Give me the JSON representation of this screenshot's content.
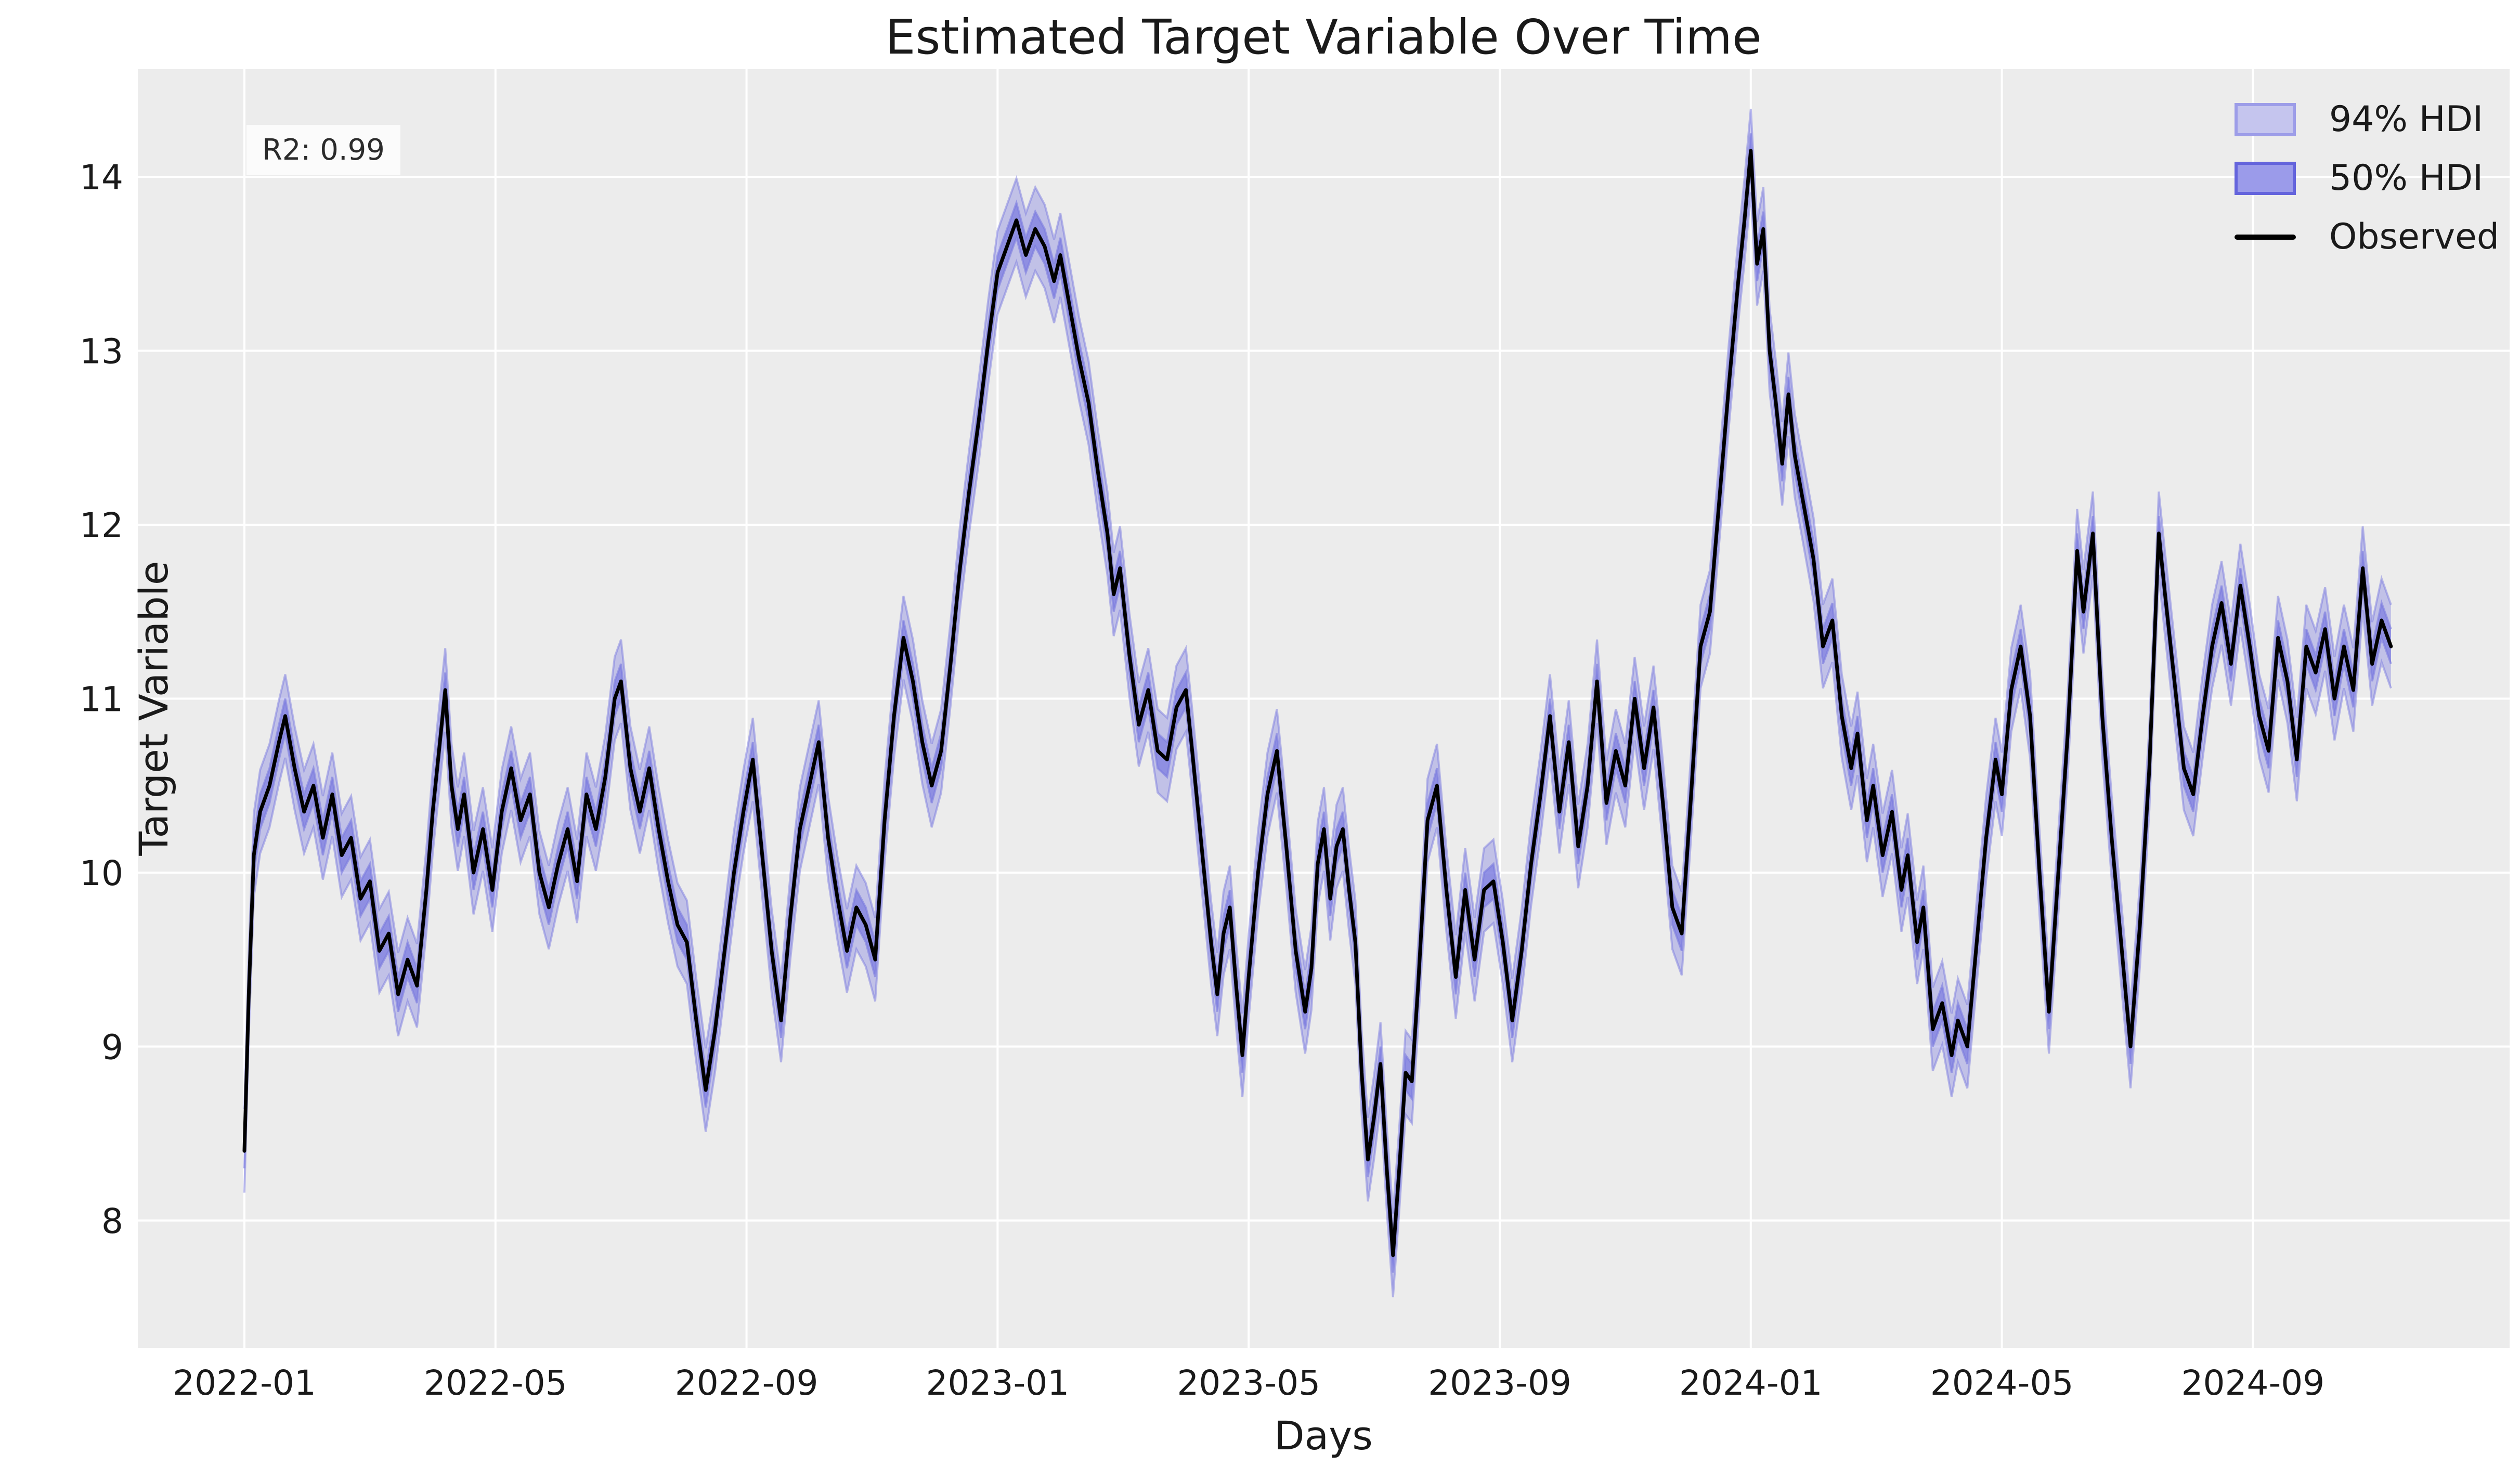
{
  "chart_data": {
    "type": "line",
    "title": "Estimated Target Variable Over Time",
    "xlabel": "Days",
    "ylabel": "Target Variable",
    "annotation": "R2: 0.99",
    "plot_bg_color": "#ececec",
    "grid_color": "#ffffff",
    "grid": "on",
    "legend_position": "upper right",
    "text_color": "#1a1a1a",
    "x_axis_unit": "date (monthly ticks, data is daily from 2022-01 to 2024-11)",
    "x_ticks": [
      {
        "label": "2022-01",
        "month": 0
      },
      {
        "label": "2022-05",
        "month": 4
      },
      {
        "label": "2022-09",
        "month": 8
      },
      {
        "label": "2023-01",
        "month": 12
      },
      {
        "label": "2023-05",
        "month": 16
      },
      {
        "label": "2023-09",
        "month": 20
      },
      {
        "label": "2024-01",
        "month": 24
      },
      {
        "label": "2024-05",
        "month": 28
      },
      {
        "label": "2024-09",
        "month": 32
      }
    ],
    "y_ticks": [
      8,
      9,
      10,
      11,
      12,
      13,
      14
    ],
    "ylim": [
      7.27,
      14.62
    ],
    "xlim_months": [
      -1.7,
      36.1
    ],
    "legend": {
      "items": [
        {
          "label": "94% HDI",
          "type": "patch",
          "fill": "#c5c5ee",
          "border": "#9d9de8"
        },
        {
          "label": "50% HDI",
          "type": "patch",
          "fill": "#9b9bea",
          "border": "#6464dc"
        },
        {
          "label": "Observed",
          "type": "line",
          "color": "#000000"
        }
      ]
    },
    "bands": [
      {
        "name": "94% HDI",
        "halfwidth": 0.24,
        "color": "#7c7ce0",
        "opacity": 0.38,
        "edge_opacity": 0.5
      },
      {
        "name": "50% HDI",
        "halfwidth": 0.1,
        "color": "#7c7ce0",
        "opacity": 0.72,
        "edge_opacity": 0.6
      }
    ],
    "series": [
      {
        "name": "Observed",
        "color": "#000000",
        "linewidth": 7,
        "points_format": "[months_since_2022_01, value]",
        "points": [
          [
            0.0,
            8.4
          ],
          [
            0.07,
            9.3
          ],
          [
            0.15,
            10.1
          ],
          [
            0.25,
            10.35
          ],
          [
            0.4,
            10.5
          ],
          [
            0.55,
            10.75
          ],
          [
            0.65,
            10.9
          ],
          [
            0.8,
            10.6
          ],
          [
            0.95,
            10.35
          ],
          [
            1.1,
            10.5
          ],
          [
            1.25,
            10.2
          ],
          [
            1.4,
            10.45
          ],
          [
            1.55,
            10.1
          ],
          [
            1.7,
            10.2
          ],
          [
            1.85,
            9.85
          ],
          [
            2.0,
            9.95
          ],
          [
            2.15,
            9.55
          ],
          [
            2.3,
            9.65
          ],
          [
            2.45,
            9.3
          ],
          [
            2.6,
            9.5
          ],
          [
            2.75,
            9.35
          ],
          [
            2.9,
            9.9
          ],
          [
            3.0,
            10.35
          ],
          [
            3.1,
            10.7
          ],
          [
            3.2,
            11.05
          ],
          [
            3.3,
            10.5
          ],
          [
            3.4,
            10.25
          ],
          [
            3.5,
            10.45
          ],
          [
            3.65,
            10.0
          ],
          [
            3.8,
            10.25
          ],
          [
            3.95,
            9.9
          ],
          [
            4.1,
            10.35
          ],
          [
            4.25,
            10.6
          ],
          [
            4.4,
            10.3
          ],
          [
            4.55,
            10.45
          ],
          [
            4.7,
            10.0
          ],
          [
            4.85,
            9.8
          ],
          [
            5.0,
            10.05
          ],
          [
            5.15,
            10.25
          ],
          [
            5.3,
            9.95
          ],
          [
            5.45,
            10.45
          ],
          [
            5.6,
            10.25
          ],
          [
            5.75,
            10.55
          ],
          [
            5.9,
            11.0
          ],
          [
            6.0,
            11.1
          ],
          [
            6.15,
            10.6
          ],
          [
            6.3,
            10.35
          ],
          [
            6.45,
            10.6
          ],
          [
            6.6,
            10.25
          ],
          [
            6.75,
            9.95
          ],
          [
            6.9,
            9.7
          ],
          [
            7.05,
            9.6
          ],
          [
            7.2,
            9.15
          ],
          [
            7.35,
            8.75
          ],
          [
            7.5,
            9.1
          ],
          [
            7.65,
            9.55
          ],
          [
            7.8,
            10.0
          ],
          [
            7.95,
            10.35
          ],
          [
            8.1,
            10.65
          ],
          [
            8.25,
            10.1
          ],
          [
            8.4,
            9.55
          ],
          [
            8.55,
            9.15
          ],
          [
            8.7,
            9.75
          ],
          [
            8.85,
            10.25
          ],
          [
            9.0,
            10.5
          ],
          [
            9.15,
            10.75
          ],
          [
            9.3,
            10.2
          ],
          [
            9.45,
            9.85
          ],
          [
            9.6,
            9.55
          ],
          [
            9.75,
            9.8
          ],
          [
            9.9,
            9.7
          ],
          [
            10.05,
            9.5
          ],
          [
            10.2,
            10.3
          ],
          [
            10.35,
            10.9
          ],
          [
            10.5,
            11.35
          ],
          [
            10.65,
            11.1
          ],
          [
            10.8,
            10.75
          ],
          [
            10.95,
            10.5
          ],
          [
            11.1,
            10.7
          ],
          [
            11.25,
            11.2
          ],
          [
            11.4,
            11.75
          ],
          [
            11.55,
            12.2
          ],
          [
            11.7,
            12.6
          ],
          [
            11.85,
            13.05
          ],
          [
            12.0,
            13.45
          ],
          [
            12.15,
            13.6
          ],
          [
            12.3,
            13.75
          ],
          [
            12.45,
            13.55
          ],
          [
            12.6,
            13.7
          ],
          [
            12.75,
            13.6
          ],
          [
            12.9,
            13.4
          ],
          [
            13.0,
            13.55
          ],
          [
            13.15,
            13.25
          ],
          [
            13.3,
            12.95
          ],
          [
            13.45,
            12.7
          ],
          [
            13.6,
            12.3
          ],
          [
            13.75,
            11.95
          ],
          [
            13.85,
            11.6
          ],
          [
            13.95,
            11.75
          ],
          [
            14.1,
            11.25
          ],
          [
            14.25,
            10.85
          ],
          [
            14.4,
            11.05
          ],
          [
            14.55,
            10.7
          ],
          [
            14.7,
            10.65
          ],
          [
            14.85,
            10.95
          ],
          [
            15.0,
            11.05
          ],
          [
            15.1,
            10.7
          ],
          [
            15.25,
            10.15
          ],
          [
            15.4,
            9.6
          ],
          [
            15.5,
            9.3
          ],
          [
            15.6,
            9.65
          ],
          [
            15.7,
            9.8
          ],
          [
            15.8,
            9.35
          ],
          [
            15.9,
            8.95
          ],
          [
            16.0,
            9.4
          ],
          [
            16.15,
            10.0
          ],
          [
            16.3,
            10.45
          ],
          [
            16.45,
            10.7
          ],
          [
            16.6,
            10.15
          ],
          [
            16.75,
            9.55
          ],
          [
            16.9,
            9.2
          ],
          [
            17.0,
            9.45
          ],
          [
            17.1,
            10.05
          ],
          [
            17.2,
            10.25
          ],
          [
            17.3,
            9.85
          ],
          [
            17.4,
            10.15
          ],
          [
            17.5,
            10.25
          ],
          [
            17.6,
            9.9
          ],
          [
            17.7,
            9.6
          ],
          [
            17.8,
            8.85
          ],
          [
            17.9,
            8.35
          ],
          [
            18.0,
            8.6
          ],
          [
            18.1,
            8.9
          ],
          [
            18.2,
            8.3
          ],
          [
            18.3,
            7.8
          ],
          [
            18.4,
            8.3
          ],
          [
            18.5,
            8.85
          ],
          [
            18.6,
            8.8
          ],
          [
            18.7,
            9.35
          ],
          [
            18.85,
            10.3
          ],
          [
            19.0,
            10.5
          ],
          [
            19.15,
            9.9
          ],
          [
            19.3,
            9.4
          ],
          [
            19.45,
            9.9
          ],
          [
            19.6,
            9.5
          ],
          [
            19.75,
            9.9
          ],
          [
            19.9,
            9.95
          ],
          [
            20.05,
            9.6
          ],
          [
            20.2,
            9.15
          ],
          [
            20.35,
            9.55
          ],
          [
            20.5,
            10.05
          ],
          [
            20.65,
            10.45
          ],
          [
            20.8,
            10.9
          ],
          [
            20.95,
            10.35
          ],
          [
            21.1,
            10.75
          ],
          [
            21.25,
            10.15
          ],
          [
            21.4,
            10.5
          ],
          [
            21.55,
            11.1
          ],
          [
            21.7,
            10.4
          ],
          [
            21.85,
            10.7
          ],
          [
            22.0,
            10.5
          ],
          [
            22.15,
            11.0
          ],
          [
            22.3,
            10.6
          ],
          [
            22.45,
            10.95
          ],
          [
            22.6,
            10.4
          ],
          [
            22.75,
            9.8
          ],
          [
            22.9,
            9.65
          ],
          [
            23.05,
            10.45
          ],
          [
            23.2,
            11.3
          ],
          [
            23.35,
            11.5
          ],
          [
            23.5,
            12.15
          ],
          [
            23.65,
            12.8
          ],
          [
            23.8,
            13.4
          ],
          [
            23.9,
            13.75
          ],
          [
            24.0,
            14.15
          ],
          [
            24.1,
            13.5
          ],
          [
            24.2,
            13.7
          ],
          [
            24.3,
            13.0
          ],
          [
            24.4,
            12.7
          ],
          [
            24.5,
            12.35
          ],
          [
            24.6,
            12.75
          ],
          [
            24.7,
            12.4
          ],
          [
            24.85,
            12.1
          ],
          [
            25.0,
            11.8
          ],
          [
            25.15,
            11.3
          ],
          [
            25.3,
            11.45
          ],
          [
            25.45,
            10.9
          ],
          [
            25.6,
            10.6
          ],
          [
            25.7,
            10.8
          ],
          [
            25.85,
            10.3
          ],
          [
            25.95,
            10.5
          ],
          [
            26.1,
            10.1
          ],
          [
            26.25,
            10.35
          ],
          [
            26.4,
            9.9
          ],
          [
            26.5,
            10.1
          ],
          [
            26.65,
            9.6
          ],
          [
            26.75,
            9.8
          ],
          [
            26.9,
            9.1
          ],
          [
            27.05,
            9.25
          ],
          [
            27.2,
            8.95
          ],
          [
            27.3,
            9.15
          ],
          [
            27.45,
            9.0
          ],
          [
            27.6,
            9.6
          ],
          [
            27.75,
            10.2
          ],
          [
            27.9,
            10.65
          ],
          [
            28.0,
            10.45
          ],
          [
            28.15,
            11.05
          ],
          [
            28.3,
            11.3
          ],
          [
            28.45,
            10.9
          ],
          [
            28.6,
            10.0
          ],
          [
            28.75,
            9.2
          ],
          [
            28.9,
            10.0
          ],
          [
            29.05,
            10.8
          ],
          [
            29.2,
            11.85
          ],
          [
            29.3,
            11.5
          ],
          [
            29.45,
            11.95
          ],
          [
            29.6,
            10.9
          ],
          [
            29.75,
            10.2
          ],
          [
            29.9,
            9.6
          ],
          [
            30.05,
            9.0
          ],
          [
            30.2,
            9.7
          ],
          [
            30.35,
            10.6
          ],
          [
            30.5,
            11.95
          ],
          [
            30.6,
            11.6
          ],
          [
            30.75,
            11.1
          ],
          [
            30.9,
            10.6
          ],
          [
            31.05,
            10.45
          ],
          [
            31.2,
            10.9
          ],
          [
            31.35,
            11.3
          ],
          [
            31.5,
            11.55
          ],
          [
            31.65,
            11.2
          ],
          [
            31.8,
            11.65
          ],
          [
            31.95,
            11.3
          ],
          [
            32.1,
            10.9
          ],
          [
            32.25,
            10.7
          ],
          [
            32.4,
            11.35
          ],
          [
            32.55,
            11.1
          ],
          [
            32.7,
            10.65
          ],
          [
            32.85,
            11.3
          ],
          [
            33.0,
            11.15
          ],
          [
            33.15,
            11.4
          ],
          [
            33.3,
            11.0
          ],
          [
            33.45,
            11.3
          ],
          [
            33.6,
            11.05
          ],
          [
            33.75,
            11.75
          ],
          [
            33.9,
            11.2
          ],
          [
            34.05,
            11.45
          ],
          [
            34.2,
            11.3
          ]
        ]
      }
    ]
  }
}
